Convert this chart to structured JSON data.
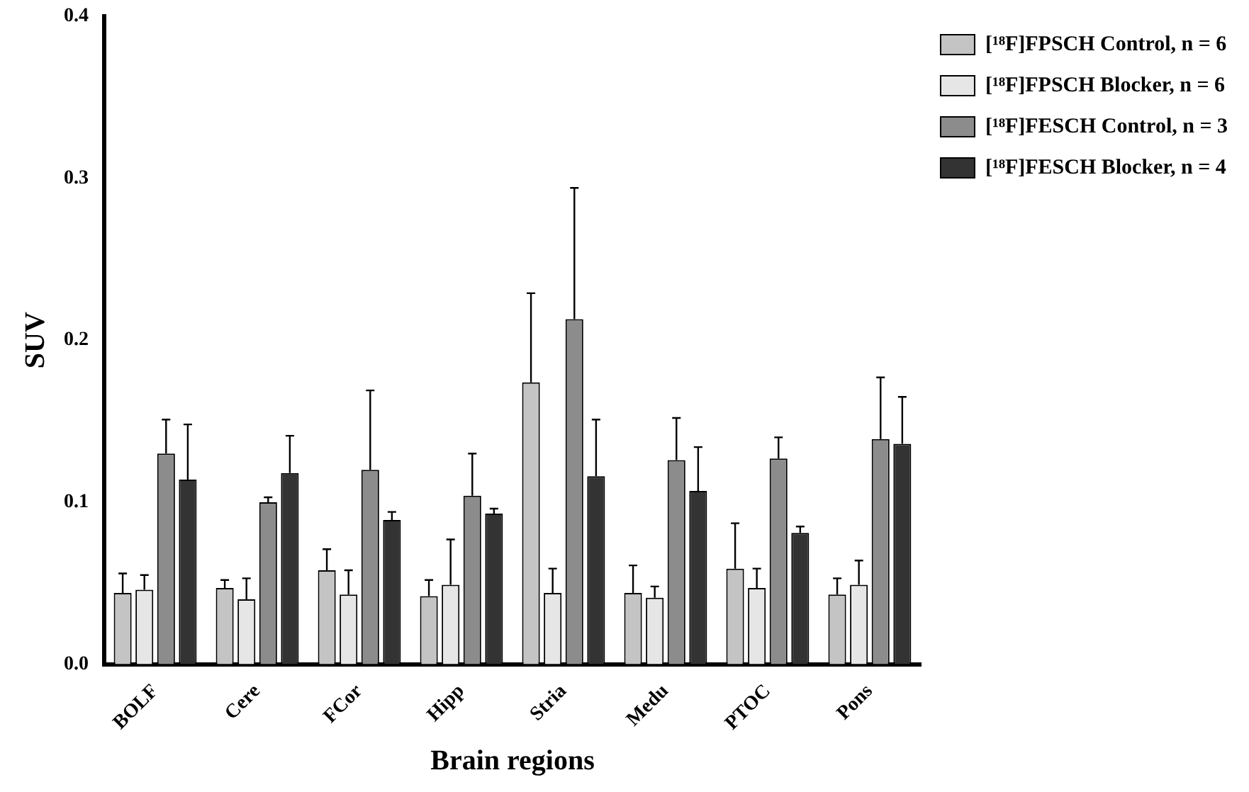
{
  "chart_data": {
    "type": "bar",
    "xlabel": "Brain regions",
    "ylabel": "SUV",
    "categories": [
      "BOLF",
      "Cere",
      "FCor",
      "Hipp",
      "Stria",
      "Medu",
      "PTOC",
      "Pons"
    ],
    "ylim": [
      0,
      0.4
    ],
    "yticks": [
      {
        "value": 0,
        "label": "0.0"
      },
      0.1,
      0.2,
      0.3,
      0.4
    ],
    "grid": false,
    "legend": "top right",
    "series": [
      {
        "name": "[¹⁸F]FPSCH Control, n = 6",
        "color": "#c4c4c4",
        "values": [
          0.044,
          0.047,
          0.058,
          0.042,
          0.174,
          0.044,
          0.059,
          0.043
        ],
        "errors": [
          [
            0.044,
            0.056
          ],
          [
            0.047,
            0.052
          ],
          [
            0.058,
            0.071
          ],
          [
            0.042,
            0.052
          ],
          [
            0.174,
            0.229
          ],
          [
            0.044,
            0.061
          ],
          [
            0.059,
            0.087
          ],
          [
            0.043,
            0.053
          ]
        ]
      },
      {
        "name": "[¹⁸F]FPSCH Blocker, n = 6",
        "color": "#e6e6e6",
        "values": [
          0.046,
          0.04,
          0.043,
          0.049,
          0.044,
          0.041,
          0.047,
          0.049
        ],
        "errors": [
          [
            0.046,
            0.055
          ],
          [
            0.04,
            0.053
          ],
          [
            0.043,
            0.058
          ],
          [
            0.049,
            0.077
          ],
          [
            0.044,
            0.059
          ],
          [
            0.041,
            0.048
          ],
          [
            0.047,
            0.059
          ],
          [
            0.049,
            0.064
          ]
        ]
      },
      {
        "name": "[¹⁸F]FESCH Control, n = 3",
        "color": "#8c8c8c",
        "values": [
          0.13,
          0.1,
          0.12,
          0.104,
          0.213,
          0.126,
          0.127,
          0.139
        ],
        "errors": [
          [
            0.13,
            0.151
          ],
          [
            0.1,
            0.103
          ],
          [
            0.12,
            0.169
          ],
          [
            0.104,
            0.13
          ],
          [
            0.213,
            0.294
          ],
          [
            0.126,
            0.152
          ],
          [
            0.127,
            0.14
          ],
          [
            0.139,
            0.177
          ]
        ]
      },
      {
        "name": "[¹⁸F]FESCH Blocker, n = 4",
        "color": "#333333",
        "values": [
          0.114,
          0.118,
          0.089,
          0.093,
          0.116,
          0.107,
          0.081,
          0.136
        ],
        "errors": [
          [
            0.114,
            0.148
          ],
          [
            0.118,
            0.141
          ],
          [
            0.089,
            0.094
          ],
          [
            0.093,
            0.096
          ],
          [
            0.116,
            0.151
          ],
          [
            0.107,
            0.134
          ],
          [
            0.081,
            0.085
          ],
          [
            0.136,
            0.165
          ]
        ]
      }
    ]
  }
}
